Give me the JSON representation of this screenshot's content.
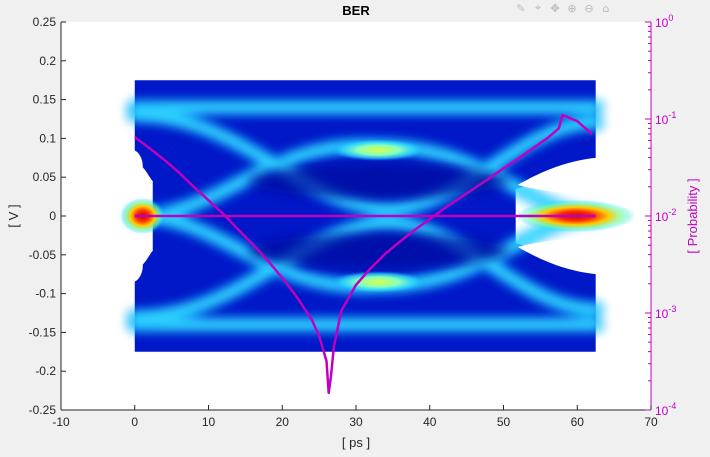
{
  "colors": {
    "background": "#f0f0f0",
    "plot_background": "#ffffff",
    "axis": "#262626",
    "right_axis": "#c000c0",
    "ber_curve": "#c000c0"
  },
  "toolbar": {
    "icons": [
      "brush-icon",
      "data-cursor-icon",
      "pan-icon",
      "zoom-in-icon",
      "zoom-out-icon",
      "home-icon"
    ]
  },
  "chart_data": {
    "type": "heatmap",
    "title": "BER",
    "xlabel": "[ ps ]",
    "ylabel": "[ V ]",
    "ylabel_right": "[ Probability ]",
    "xlim": [
      -10,
      70
    ],
    "ylim": [
      -0.25,
      0.25
    ],
    "ylim_right": [
      0.0001,
      1
    ],
    "yscale_right": "log",
    "x_ticks": [
      "-10",
      "0",
      "10",
      "20",
      "30",
      "40",
      "50",
      "60",
      "70"
    ],
    "y_ticks": [
      "-0.25",
      "-0.2",
      "-0.15",
      "-0.1",
      "-0.05",
      "0",
      "0.05",
      "0.1",
      "0.15",
      "0.2",
      "0.25"
    ],
    "y_right_ticks": [
      {
        "base": "10",
        "exp": "-4"
      },
      {
        "base": "10",
        "exp": "-3"
      },
      {
        "base": "10",
        "exp": "-2"
      },
      {
        "base": "10",
        "exp": "-1"
      },
      {
        "base": "10",
        "exp": "0"
      }
    ],
    "grid": false,
    "eye_diagram": {
      "x_range": [
        0,
        62.5
      ],
      "y_range": [
        -0.175,
        0.175
      ],
      "colormap": "jet",
      "levels": [
        -0.14,
        -0.08,
        0,
        0.08,
        0.14
      ],
      "crossings_ps": [
        0,
        62.5
      ],
      "eye_center_ps": 33
    },
    "series": [
      {
        "type": "line",
        "axis": "right",
        "x": [
          0,
          2,
          4,
          6,
          8,
          10,
          12,
          14,
          16,
          18,
          20,
          22,
          24,
          25,
          26,
          26.3,
          26.6,
          27,
          28,
          30,
          32,
          34,
          36,
          38,
          40,
          42,
          44,
          46,
          48,
          50,
          52,
          54,
          56,
          57.5,
          58,
          60,
          62
        ],
        "y": [
          0.065,
          0.05,
          0.038,
          0.028,
          0.02,
          0.0145,
          0.0105,
          0.0073,
          0.0051,
          0.0035,
          0.0023,
          0.00145,
          0.00085,
          0.00058,
          0.00032,
          0.00015,
          0.00022,
          0.00045,
          0.00105,
          0.00195,
          0.0029,
          0.0041,
          0.0055,
          0.0072,
          0.0093,
          0.012,
          0.0152,
          0.0192,
          0.0243,
          0.031,
          0.039,
          0.05,
          0.064,
          0.08,
          0.11,
          0.095,
          0.07
        ]
      },
      {
        "type": "line",
        "axis": "left",
        "x": [
          0,
          62.5
        ],
        "y": [
          0,
          0
        ]
      }
    ]
  }
}
